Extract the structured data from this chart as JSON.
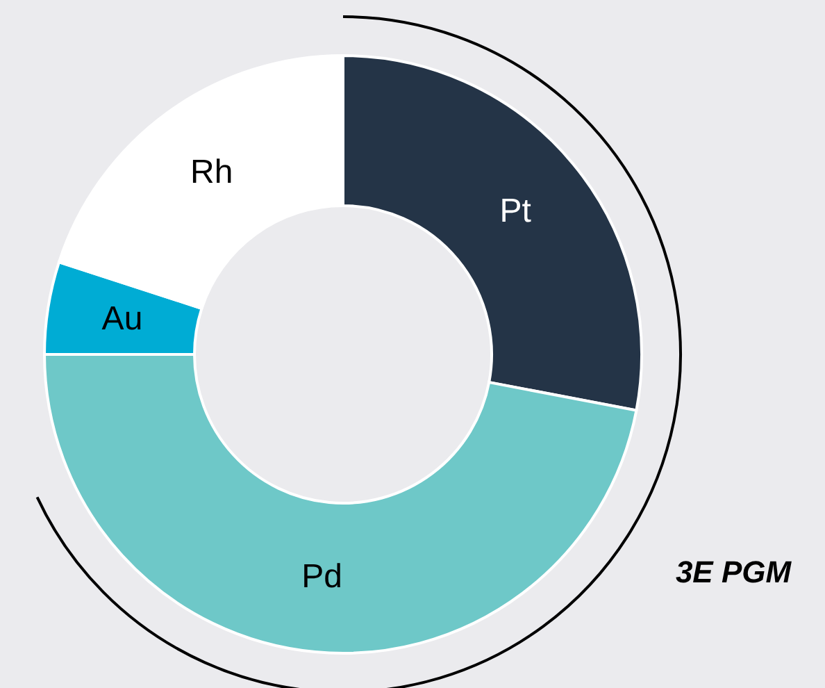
{
  "chart_data": {
    "type": "donut",
    "categories": [
      "Pt",
      "Pd",
      "Au",
      "Rh"
    ],
    "values": [
      28,
      47,
      5,
      20
    ],
    "colors": [
      "#243447",
      "#6ec8c8",
      "#00acd4",
      "#ffffff"
    ],
    "annotations": [
      "3E PGM"
    ]
  }
}
